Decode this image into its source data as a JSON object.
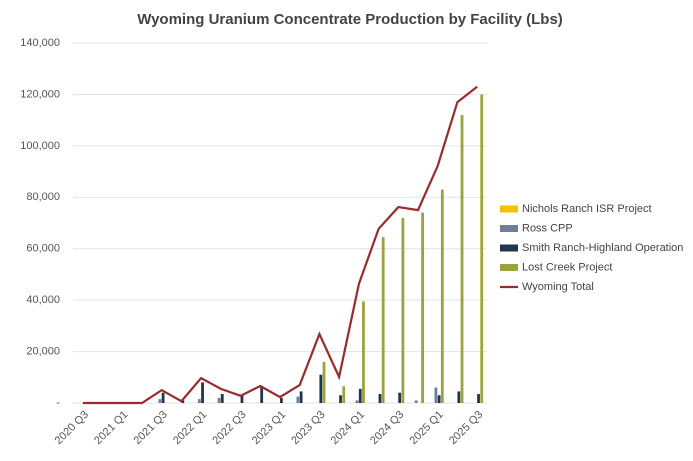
{
  "chart_data": {
    "type": "bar",
    "title": "Wyoming Uranium Concentrate Production by Facility (Lbs)",
    "categories": [
      "2020 Q3",
      null,
      "2021 Q1",
      null,
      "2021 Q3",
      null,
      "2022 Q1",
      null,
      "2022 Q3",
      null,
      "2023 Q1",
      null,
      "2023 Q3",
      null,
      "2024 Q1",
      null,
      "2024 Q3",
      null,
      "2025 Q1",
      null,
      "2025 Q3"
    ],
    "series": [
      {
        "name": "Nichols Ranch ISR Project",
        "color": "#f2c200",
        "type": "bar",
        "values": [
          0,
          0,
          0,
          0,
          0,
          0,
          0,
          0,
          0,
          0,
          0,
          0,
          0,
          0,
          0,
          0,
          0,
          0,
          0,
          0,
          0
        ]
      },
      {
        "name": "Ross CPP",
        "color": "#6f7f98",
        "type": "bar",
        "values": [
          0,
          0,
          0,
          0,
          1500,
          0,
          1500,
          2000,
          0,
          0,
          0,
          2500,
          0,
          0,
          1000,
          0,
          0,
          1000,
          6000,
          0,
          0
        ]
      },
      {
        "name": "Smith Ranch-Highland Operation",
        "color": "#1f3550",
        "type": "bar",
        "values": [
          0,
          0,
          0,
          0,
          4000,
          1000,
          8000,
          3500,
          3000,
          6500,
          2000,
          4500,
          11000,
          3000,
          5500,
          3500,
          4000,
          0,
          3000,
          4500,
          3500
        ]
      },
      {
        "name": "Lost Creek Project",
        "color": "#9ca33b",
        "type": "bar",
        "values": [
          0,
          0,
          0,
          0,
          0,
          0,
          0,
          0,
          0,
          0,
          0,
          0,
          16000,
          6500,
          39500,
          64500,
          72000,
          74000,
          83000,
          112000,
          120000
        ]
      },
      {
        "name": "Wyoming Total",
        "color": "#9b2a2a",
        "type": "line",
        "values": [
          0,
          0,
          0,
          0,
          5000,
          700,
          9700,
          5500,
          2800,
          6600,
          2300,
          7000,
          26800,
          10100,
          46300,
          67700,
          76200,
          75000,
          92200,
          117000,
          123000
        ]
      }
    ],
    "ylim": [
      0,
      140000
    ],
    "yticks": [
      {
        "value": 0,
        "label": "-"
      },
      {
        "value": 20000,
        "label": "20,000"
      },
      {
        "value": 40000,
        "label": "40,000"
      },
      {
        "value": 60000,
        "label": "60,000"
      },
      {
        "value": 80000,
        "label": "80,000"
      },
      {
        "value": 100000,
        "label": "100,000"
      },
      {
        "value": 120000,
        "label": "120,000"
      },
      {
        "value": 140000,
        "label": "140,000"
      }
    ],
    "grid": true,
    "legend": "right"
  }
}
